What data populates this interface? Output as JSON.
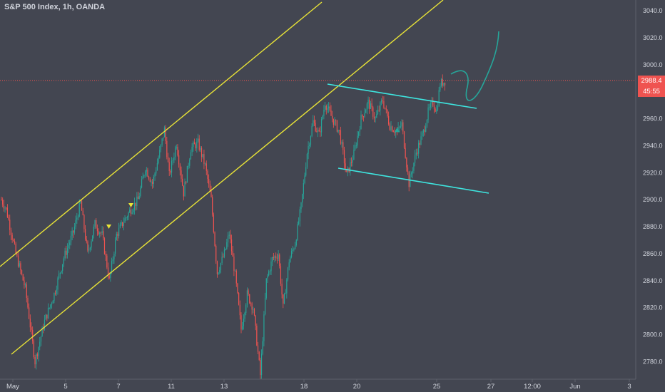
{
  "header": {
    "title": "S&P 500 Index, 1h, OANDA"
  },
  "price_line": {
    "value": 2988.4,
    "label": "2988.4",
    "color": "#ef5350"
  },
  "countdown": {
    "label": "45:55"
  },
  "colors": {
    "background": "#434651",
    "up": "#26a69a",
    "down": "#ef5350",
    "channel": "#e8e337",
    "flag": "#3ee6e0",
    "projection": "#26a69a",
    "axis_text": "#d1d4dc"
  },
  "chart_data": {
    "type": "candlestick",
    "title": "S&P 500 Index, 1h, OANDA",
    "xlabel": "",
    "ylabel": "",
    "ylim": [
      2767,
      3048
    ],
    "y_ticks": [
      2780,
      2800,
      2820,
      2840,
      2860,
      2880,
      2900,
      2920,
      2940,
      2960,
      2980,
      3000,
      3020,
      3040
    ],
    "y_tick_labels": [
      "2780.0",
      "2800.0",
      "2820.0",
      "2840.0",
      "2860.0",
      "2880.0",
      "2900.0",
      "2920.0",
      "2940.0",
      "2960.0",
      "2980.0",
      "3000.0",
      "3020.0",
      "3040.0"
    ],
    "x_tick_labels": [
      "May",
      "5",
      "7",
      "11",
      "13",
      "18",
      "20",
      "25",
      "27",
      "12:00",
      "Jun",
      "3"
    ],
    "grid": false,
    "approx_close_path": [
      {
        "i": 0,
        "y": 2900
      },
      {
        "i": 4,
        "y": 2893
      },
      {
        "i": 12,
        "y": 2860
      },
      {
        "i": 20,
        "y": 2834
      },
      {
        "i": 28,
        "y": 2780
      },
      {
        "i": 36,
        "y": 2810
      },
      {
        "i": 44,
        "y": 2830
      },
      {
        "i": 52,
        "y": 2857
      },
      {
        "i": 60,
        "y": 2876
      },
      {
        "i": 66,
        "y": 2898
      },
      {
        "i": 72,
        "y": 2860
      },
      {
        "i": 78,
        "y": 2882
      },
      {
        "i": 84,
        "y": 2874
      },
      {
        "i": 90,
        "y": 2840
      },
      {
        "i": 96,
        "y": 2874
      },
      {
        "i": 102,
        "y": 2884
      },
      {
        "i": 108,
        "y": 2893
      },
      {
        "i": 114,
        "y": 2900
      },
      {
        "i": 120,
        "y": 2924
      },
      {
        "i": 126,
        "y": 2912
      },
      {
        "i": 132,
        "y": 2935
      },
      {
        "i": 136,
        "y": 2952
      },
      {
        "i": 140,
        "y": 2918
      },
      {
        "i": 146,
        "y": 2942
      },
      {
        "i": 152,
        "y": 2905
      },
      {
        "i": 158,
        "y": 2938
      },
      {
        "i": 164,
        "y": 2942
      },
      {
        "i": 170,
        "y": 2925
      },
      {
        "i": 175,
        "y": 2900
      },
      {
        "i": 180,
        "y": 2846
      },
      {
        "i": 186,
        "y": 2860
      },
      {
        "i": 190,
        "y": 2875
      },
      {
        "i": 195,
        "y": 2844
      },
      {
        "i": 200,
        "y": 2804
      },
      {
        "i": 205,
        "y": 2830
      },
      {
        "i": 210,
        "y": 2820
      },
      {
        "i": 216,
        "y": 2770
      },
      {
        "i": 221,
        "y": 2840
      },
      {
        "i": 226,
        "y": 2856
      },
      {
        "i": 231,
        "y": 2860
      },
      {
        "i": 235,
        "y": 2820
      },
      {
        "i": 240,
        "y": 2855
      },
      {
        "i": 245,
        "y": 2868
      },
      {
        "i": 250,
        "y": 2895
      },
      {
        "i": 255,
        "y": 2935
      },
      {
        "i": 260,
        "y": 2958
      },
      {
        "i": 265,
        "y": 2948
      },
      {
        "i": 270,
        "y": 2972
      },
      {
        "i": 275,
        "y": 2962
      },
      {
        "i": 282,
        "y": 2950
      },
      {
        "i": 288,
        "y": 2918
      },
      {
        "i": 294,
        "y": 2934
      },
      {
        "i": 300,
        "y": 2960
      },
      {
        "i": 306,
        "y": 2972
      },
      {
        "i": 312,
        "y": 2960
      },
      {
        "i": 318,
        "y": 2974
      },
      {
        "i": 324,
        "y": 2955
      },
      {
        "i": 330,
        "y": 2950
      },
      {
        "i": 334,
        "y": 2956
      },
      {
        "i": 340,
        "y": 2912
      },
      {
        "i": 346,
        "y": 2935
      },
      {
        "i": 352,
        "y": 2950
      },
      {
        "i": 356,
        "y": 2965
      },
      {
        "i": 360,
        "y": 2972
      },
      {
        "i": 363,
        "y": 2966
      },
      {
        "i": 366,
        "y": 2986
      },
      {
        "i": 370,
        "y": 2988
      }
    ]
  }
}
